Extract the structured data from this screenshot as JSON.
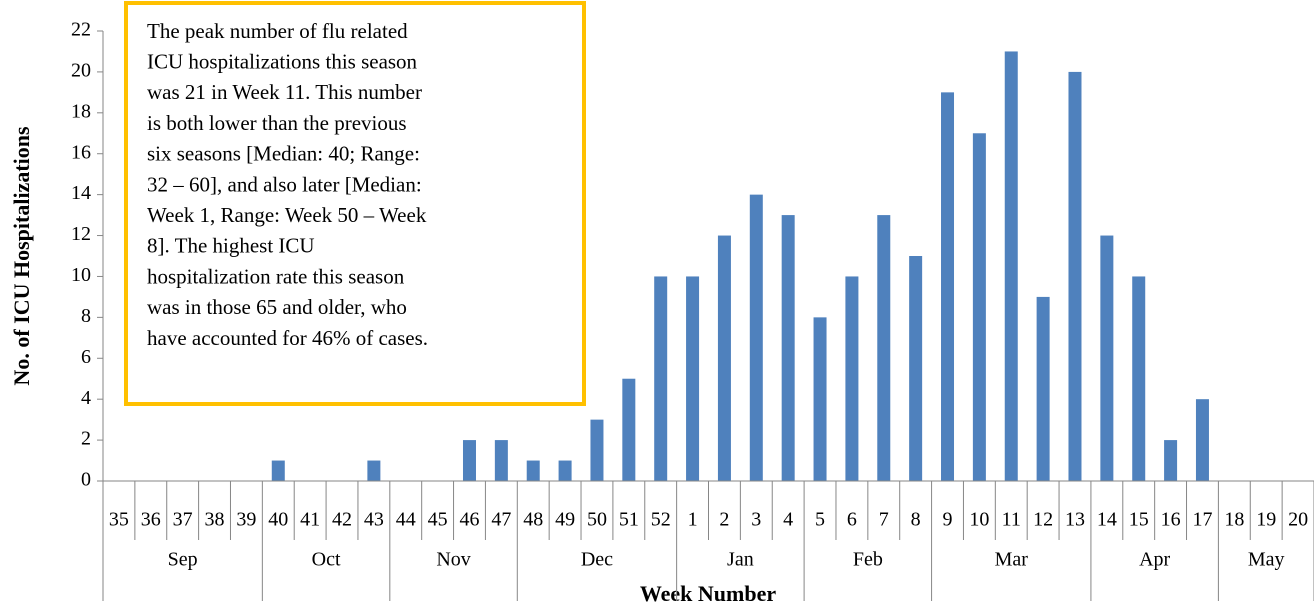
{
  "chart_data": {
    "type": "bar",
    "y_label": "No. of ICU Hospitalizations",
    "x_label": "Week Number",
    "annotation": [
      "The peak number of flu related",
      "ICU hospitalizations this season",
      "was 21 in Week 11. This number",
      "is both lower than the previous",
      "six seasons [Median: 40; Range:",
      "32 – 60], and also later [Median:",
      "Week 1, Range: Week 50 – Week",
      "8]. The highest ICU",
      "hospitalization rate this season",
      "was in those 65 and older, who",
      "have accounted for 46% of cases."
    ],
    "groups": [
      {
        "label": "Sep",
        "categories": [
          "35",
          "36",
          "37",
          "38",
          "39"
        ]
      },
      {
        "label": "Oct",
        "categories": [
          "40",
          "41",
          "42",
          "43"
        ]
      },
      {
        "label": "Nov",
        "categories": [
          "44",
          "45",
          "46",
          "47"
        ]
      },
      {
        "label": "Dec",
        "categories": [
          "48",
          "49",
          "50",
          "51",
          "52"
        ]
      },
      {
        "label": "Jan",
        "categories": [
          "1",
          "2",
          "3",
          "4"
        ]
      },
      {
        "label": "Feb",
        "categories": [
          "5",
          "6",
          "7",
          "8"
        ]
      },
      {
        "label": "Mar",
        "categories": [
          "9",
          "10",
          "11",
          "12",
          "13"
        ]
      },
      {
        "label": "Apr",
        "categories": [
          "14",
          "15",
          "16",
          "17"
        ]
      },
      {
        "label": "May",
        "categories": [
          "18",
          "19",
          "20"
        ]
      }
    ],
    "values": [
      0,
      0,
      0,
      0,
      0,
      1,
      0,
      0,
      1,
      0,
      0,
      2,
      2,
      1,
      1,
      3,
      5,
      10,
      10,
      12,
      14,
      13,
      8,
      10,
      13,
      11,
      19,
      17,
      21,
      9,
      20,
      12,
      10,
      2,
      4,
      0,
      0,
      0
    ],
    "color": "#4f81bd",
    "ylim": [
      0,
      22
    ],
    "yticks": [
      0,
      2,
      4,
      6,
      8,
      10,
      12,
      14,
      16,
      18,
      20,
      22
    ],
    "grid": false
  }
}
